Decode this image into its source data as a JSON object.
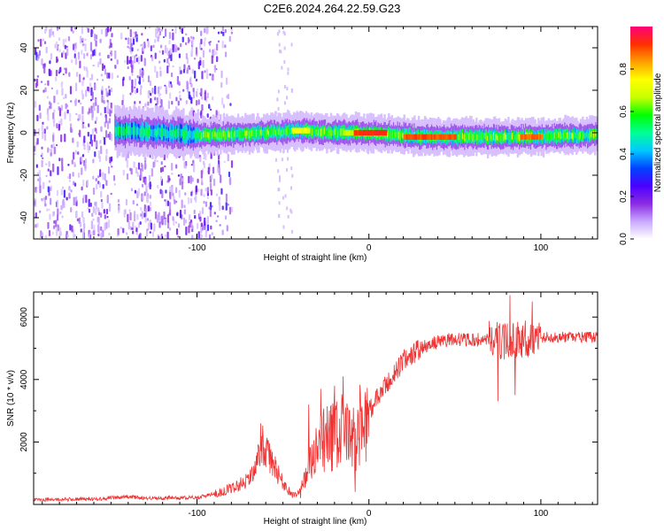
{
  "title": "C2E6.2024.264.22.59.G23",
  "chart_data": [
    {
      "type": "heatmap",
      "name": "spectrogram",
      "xlabel": "Height of straight line (km)",
      "ylabel": "Frequency (Hz)",
      "xlim": [
        -195,
        133
      ],
      "ylim": [
        -50,
        50
      ],
      "xticks": [
        -100,
        0,
        100
      ],
      "yticks": [
        -40,
        -20,
        0,
        20,
        40
      ],
      "colorbar": {
        "label": "Normalized spectral amplitude",
        "range": [
          0,
          1
        ],
        "ticks": [
          "0.0",
          "0.2",
          "0.4",
          "0.6",
          "0.8"
        ],
        "tick_values": [
          0.0,
          0.2,
          0.4,
          0.6,
          0.8
        ],
        "colors": [
          "#ffffff",
          "#c9a8ff",
          "#8a2be2",
          "#4b00ff",
          "#0044ff",
          "#00c8ff",
          "#00ff96",
          "#00ff00",
          "#c8ff00",
          "#ffff00",
          "#ffa000",
          "#ff3000",
          "#ff007a"
        ]
      },
      "band_center_hz": [
        {
          "x": -145,
          "y": 1
        },
        {
          "x": -120,
          "y": 0
        },
        {
          "x": -100,
          "y": -1
        },
        {
          "x": -80,
          "y": -1
        },
        {
          "x": -60,
          "y": 0
        },
        {
          "x": -40,
          "y": 1
        },
        {
          "x": -20,
          "y": 0
        },
        {
          "x": 0,
          "y": 0
        },
        {
          "x": 30,
          "y": -2
        },
        {
          "x": 60,
          "y": -2
        },
        {
          "x": 90,
          "y": -2
        },
        {
          "x": 133,
          "y": -1
        }
      ],
      "peak_segments": [
        {
          "x0": -10,
          "x1": 10,
          "y": 0,
          "amplitude": 0.95
        },
        {
          "x0": 20,
          "x1": 50,
          "y": -2,
          "amplitude": 0.92
        },
        {
          "x0": 88,
          "x1": 100,
          "y": -2,
          "amplitude": 0.9
        },
        {
          "x0": -45,
          "x1": -35,
          "y": 1,
          "amplitude": 0.75
        },
        {
          "x0": -15,
          "x1": -10,
          "y": 0,
          "amplitude": 0.7
        }
      ],
      "noise_region_x": [
        -195,
        -80
      ],
      "sparse_noise_x": [
        -55,
        -45
      ]
    },
    {
      "type": "line",
      "name": "snr",
      "xlabel": "Height of straight line (km)",
      "ylabel": "SNR (10 * v/v)",
      "xlim": [
        -195,
        133
      ],
      "ylim": [
        0,
        6800
      ],
      "xticks": [
        -100,
        0,
        100
      ],
      "yticks": [
        2000,
        4000,
        6000
      ],
      "color": "#ee3333",
      "trend": [
        {
          "x": -195,
          "y": 150
        },
        {
          "x": -160,
          "y": 170
        },
        {
          "x": -140,
          "y": 250
        },
        {
          "x": -130,
          "y": 200
        },
        {
          "x": -100,
          "y": 220
        },
        {
          "x": -85,
          "y": 400
        },
        {
          "x": -75,
          "y": 650
        },
        {
          "x": -68,
          "y": 900
        },
        {
          "x": -62,
          "y": 1900
        },
        {
          "x": -57,
          "y": 1400
        },
        {
          "x": -50,
          "y": 700
        },
        {
          "x": -45,
          "y": 300
        },
        {
          "x": -40,
          "y": 400
        },
        {
          "x": -33,
          "y": 1400
        },
        {
          "x": -25,
          "y": 2100
        },
        {
          "x": -15,
          "y": 2300
        },
        {
          "x": -10,
          "y": 2000
        },
        {
          "x": -5,
          "y": 2500
        },
        {
          "x": 0,
          "y": 3000
        },
        {
          "x": 10,
          "y": 3800
        },
        {
          "x": 20,
          "y": 4600
        },
        {
          "x": 30,
          "y": 5000
        },
        {
          "x": 40,
          "y": 5200
        },
        {
          "x": 50,
          "y": 5300
        },
        {
          "x": 60,
          "y": 5250
        },
        {
          "x": 70,
          "y": 5300
        },
        {
          "x": 80,
          "y": 5200
        },
        {
          "x": 90,
          "y": 5300
        },
        {
          "x": 100,
          "y": 5350
        },
        {
          "x": 133,
          "y": 5350
        }
      ],
      "spikes": [
        {
          "x": -63,
          "y": 2600
        },
        {
          "x": -35,
          "y": 3200
        },
        {
          "x": -28,
          "y": 3700
        },
        {
          "x": -20,
          "y": 3800
        },
        {
          "x": -15,
          "y": 4100
        },
        {
          "x": -8,
          "y": 4900
        },
        {
          "x": -8,
          "y": 400
        },
        {
          "x": 75,
          "y": 3300
        },
        {
          "x": 82,
          "y": 6700
        },
        {
          "x": 85,
          "y": 3500
        },
        {
          "x": 95,
          "y": 6500
        }
      ]
    }
  ]
}
